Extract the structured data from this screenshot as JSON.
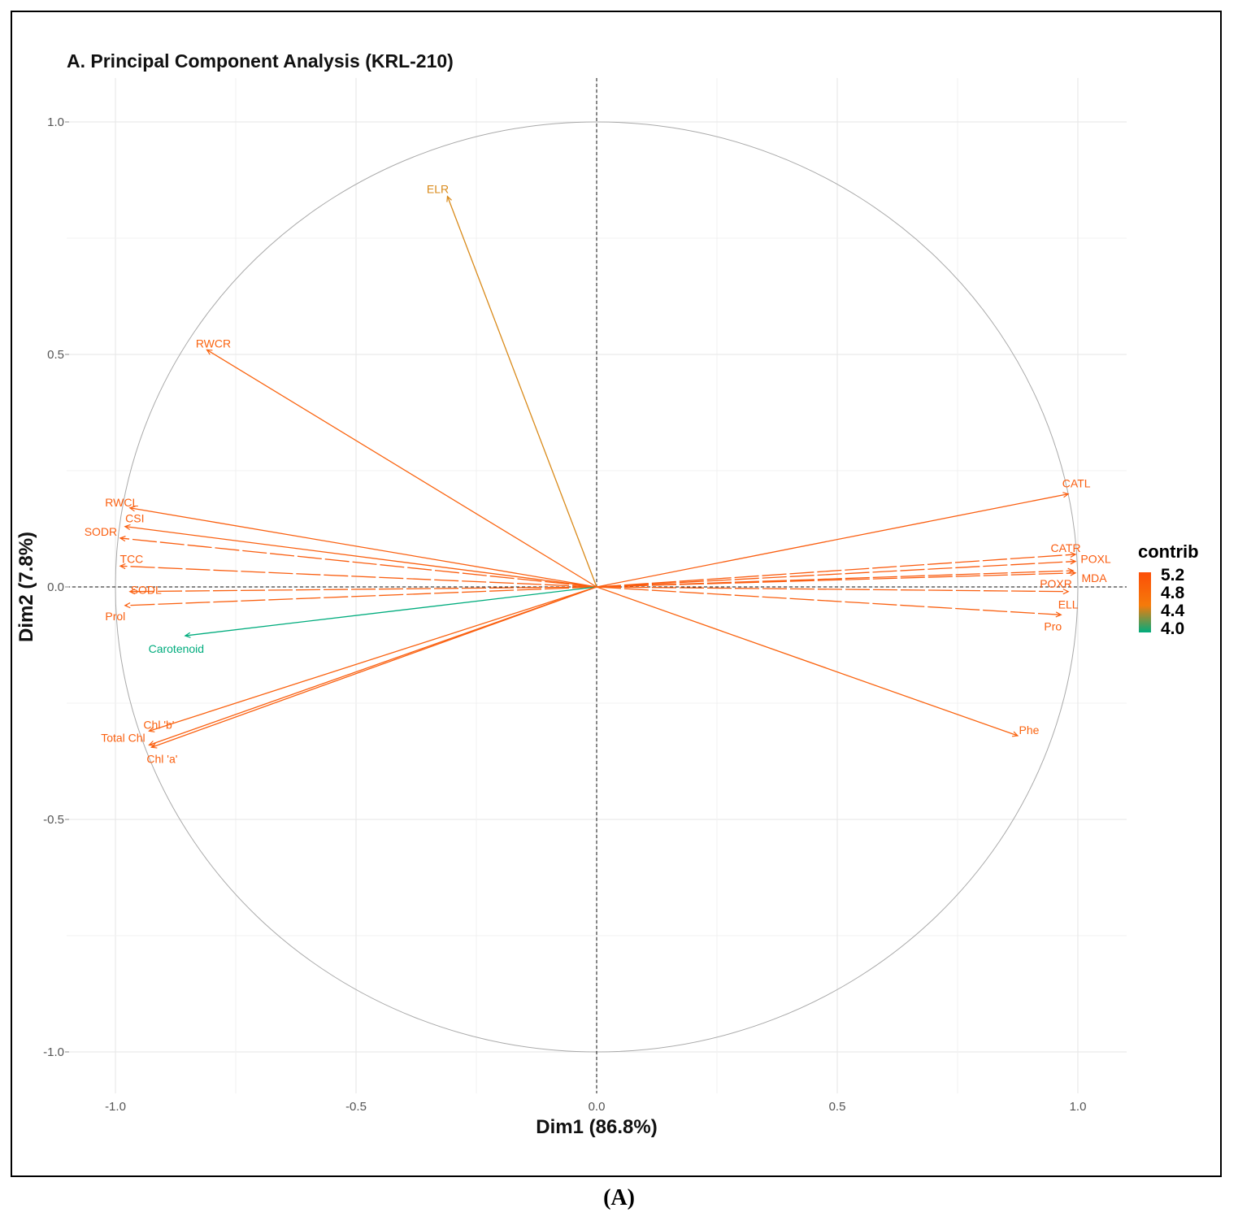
{
  "figure_caption": "(A)",
  "chart_data": {
    "type": "scatter",
    "subtype": "pca_variable_correlation_circle",
    "title": "A. Principal Component Analysis (KRL-210)",
    "xlabel": "Dim1 (86.8%)",
    "ylabel": "Dim2 (7.8%)",
    "xlim": [
      -1.0,
      1.0
    ],
    "ylim": [
      -1.0,
      1.0
    ],
    "xticks": [
      -1.0,
      -0.5,
      0.0,
      0.5,
      1.0
    ],
    "xtick_labels": [
      "-1.0",
      "-0.5",
      "0.0",
      "0.5",
      "1.0"
    ],
    "yticks": [
      -1.0,
      -0.5,
      0.0,
      0.5,
      1.0
    ],
    "ytick_labels": [
      "-1.0",
      "-0.5",
      "0.0",
      "0.5",
      "1.0"
    ],
    "grid": true,
    "legend": {
      "title": "contrib",
      "position": "right",
      "labels": [
        "5.2",
        "4.8",
        "4.4",
        "4.0"
      ],
      "color_high": "#fc4e08",
      "color_mid": "#f57a0a",
      "color_low": "#00ac7d"
    },
    "series": [
      {
        "name": "ELR",
        "x": -0.31,
        "y": 0.84,
        "contrib": 4.25,
        "color": "#d98a1a"
      },
      {
        "name": "RWCR",
        "x": -0.81,
        "y": 0.51,
        "contrib": 4.95,
        "color": "#fa6410"
      },
      {
        "name": "RWCL",
        "x": -0.97,
        "y": 0.17,
        "contrib": 5.05,
        "color": "#fa6010"
      },
      {
        "name": "CSI",
        "x": -0.98,
        "y": 0.13,
        "contrib": 5.05,
        "color": "#fa6010"
      },
      {
        "name": "SODR",
        "x": -0.99,
        "y": 0.105,
        "contrib": 5.1,
        "color": "#fa5e10"
      },
      {
        "name": "TCC",
        "x": -0.99,
        "y": 0.045,
        "contrib": 5.1,
        "color": "#fa5e10"
      },
      {
        "name": "SODL",
        "x": -0.97,
        "y": -0.01,
        "contrib": 5.05,
        "color": "#fa6010"
      },
      {
        "name": "Prol",
        "x": -0.98,
        "y": -0.04,
        "contrib": 5.05,
        "color": "#fa6010"
      },
      {
        "name": "Carotenoid",
        "x": -0.855,
        "y": -0.105,
        "contrib": 4.0,
        "color": "#00ac7d"
      },
      {
        "name": "Chl 'b'",
        "x": -0.93,
        "y": -0.31,
        "contrib": 5.0,
        "color": "#fa6210"
      },
      {
        "name": "Total Chl",
        "x": -0.93,
        "y": -0.34,
        "contrib": 5.05,
        "color": "#fa6010"
      },
      {
        "name": "Chl 'a'",
        "x": -0.925,
        "y": -0.345,
        "contrib": 5.05,
        "color": "#fa6010"
      },
      {
        "name": "CATL",
        "x": 0.98,
        "y": 0.2,
        "contrib": 5.1,
        "color": "#fa5e10"
      },
      {
        "name": "CATR",
        "x": 0.995,
        "y": 0.07,
        "contrib": 5.15,
        "color": "#fa5c10"
      },
      {
        "name": "POXL",
        "x": 0.995,
        "y": 0.055,
        "contrib": 5.15,
        "color": "#fa5c10"
      },
      {
        "name": "MDA",
        "x": 0.99,
        "y": 0.035,
        "contrib": 5.15,
        "color": "#fa5c10"
      },
      {
        "name": "POXR",
        "x": 0.995,
        "y": 0.03,
        "contrib": 5.15,
        "color": "#fa5c10"
      },
      {
        "name": "ELL",
        "x": 0.98,
        "y": -0.01,
        "contrib": 5.1,
        "color": "#fa5e10"
      },
      {
        "name": "Pro",
        "x": 0.965,
        "y": -0.06,
        "contrib": 5.05,
        "color": "#fa6010"
      },
      {
        "name": "Phe",
        "x": 0.875,
        "y": -0.32,
        "contrib": 4.95,
        "color": "#fa6410"
      }
    ]
  }
}
